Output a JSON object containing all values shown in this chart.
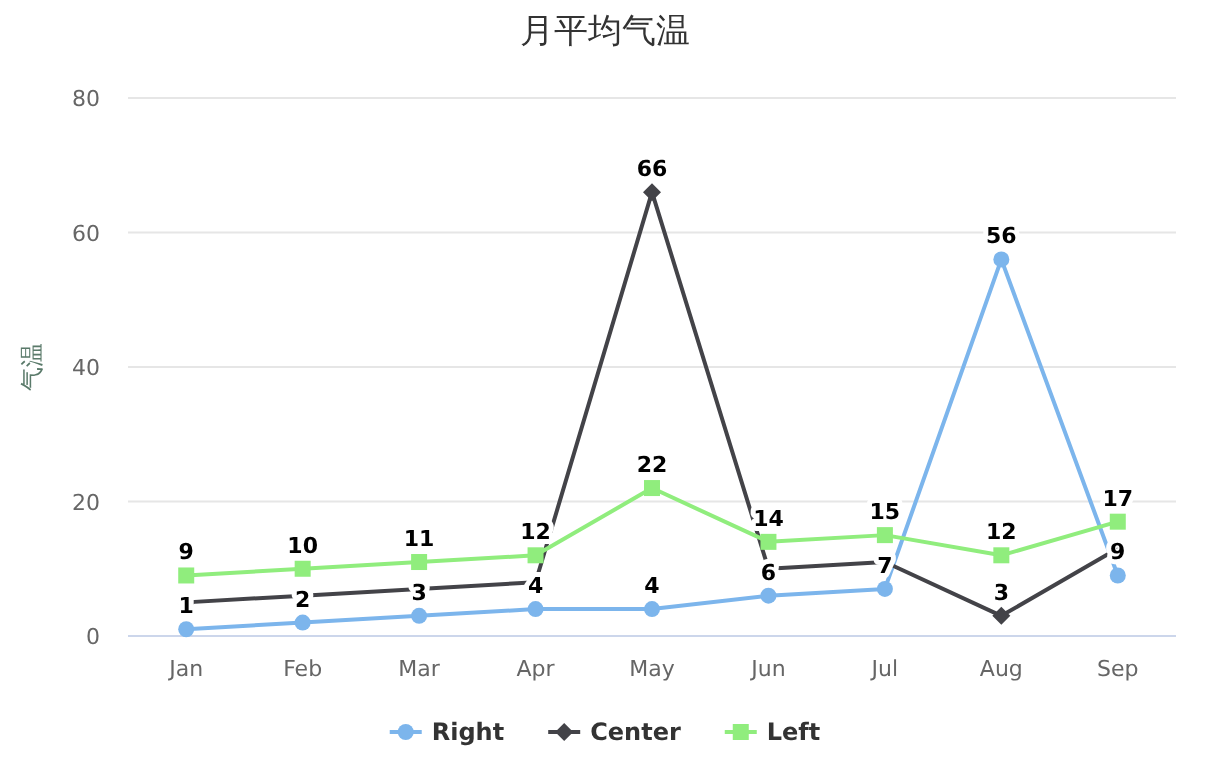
{
  "chart_data": {
    "type": "line",
    "title": "月平均气温",
    "ylabel": "气温",
    "categories": [
      "Jan",
      "Feb",
      "Mar",
      "Apr",
      "May",
      "Jun",
      "Jul",
      "Aug",
      "Sep"
    ],
    "series": [
      {
        "name": "Right",
        "color": "#7cb5ec",
        "marker": "circle",
        "values": [
          1,
          2,
          3,
          4,
          4,
          6,
          7,
          56,
          9
        ],
        "value_labels": [
          "1",
          "2",
          "3",
          "4",
          "4",
          "6",
          "7",
          "56",
          "9"
        ]
      },
      {
        "name": "Center",
        "color": "#434348",
        "marker": "diamond",
        "values": [
          5,
          6,
          7,
          8,
          66,
          10,
          11,
          3,
          13
        ],
        "value_labels": [
          null,
          null,
          null,
          null,
          "66",
          null,
          null,
          "3",
          null
        ]
      },
      {
        "name": "Left",
        "color": "#90ed7d",
        "marker": "square",
        "values": [
          9,
          10,
          11,
          12,
          22,
          14,
          15,
          12,
          17
        ],
        "value_labels": [
          "9",
          "10",
          "11",
          "12",
          "22",
          "14",
          "15",
          "12",
          "17"
        ]
      }
    ],
    "ylim": [
      0,
      80
    ],
    "yticks": [
      0,
      20,
      40,
      60,
      80
    ],
    "grid": "y",
    "legend": "bottom"
  }
}
